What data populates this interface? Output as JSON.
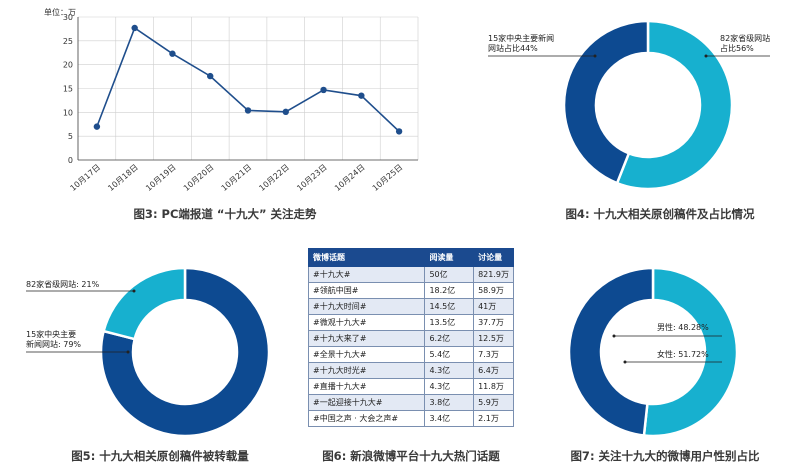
{
  "colors": {
    "dark_blue": "#0d4a91",
    "cyan": "#17b0cf",
    "line": "#1f4e8c"
  },
  "fig3": {
    "caption": "图3: PC端报道 “十九大” 关注走势",
    "chart_data": {
      "type": "line",
      "title": "图3: PC端报道 “十九大” 关注走势",
      "ylabel": "单位：万",
      "categories": [
        "10月17日",
        "10月18日",
        "10月19日",
        "10月20日",
        "10月21日",
        "10月22日",
        "10月23日",
        "10月24日",
        "10月25日"
      ],
      "values": [
        7,
        27.7,
        22.3,
        17.6,
        10.4,
        10.1,
        14.7,
        13.5,
        6
      ],
      "ylim": [
        0,
        30
      ],
      "yticks": [
        0,
        5,
        10,
        15,
        20,
        25,
        30
      ],
      "grid": true
    }
  },
  "fig4": {
    "caption": "图4: 十九大相关原创稿件及占比情况",
    "labels": [
      {
        "line1": "15家中央主要新闻",
        "line2": "网站占比44%"
      },
      {
        "line1": "82家省级网站",
        "line2": "占比56%"
      }
    ],
    "chart_data": {
      "type": "pie",
      "title": "图4: 十九大相关原创稿件及占比情况",
      "categories": [
        "15家中央主要新闻网站",
        "82家省级网站"
      ],
      "values": [
        44,
        56
      ]
    }
  },
  "fig5": {
    "caption": "图5: 十九大相关原创稿件被转载量",
    "labels": [
      {
        "line1": "82家省级网站: 21%",
        "line2": ""
      },
      {
        "line1": "15家中央主要",
        "line2": "新闻网站: 79%"
      }
    ],
    "chart_data": {
      "type": "pie",
      "title": "图5: 十九大相关原创稿件被转载量",
      "categories": [
        "82家省级网站",
        "15家中央主要新闻网站"
      ],
      "values": [
        21,
        79
      ]
    }
  },
  "fig6": {
    "caption": "图6: 新浪微博平台十九大热门话题",
    "chart_data": {
      "type": "table",
      "title": "图6: 新浪微博平台十九大热门话题",
      "columns": [
        "微博话题",
        "阅读量",
        "讨论量"
      ],
      "rows": [
        [
          "#十九大#",
          "50亿",
          "821.9万"
        ],
        [
          "#领航中国#",
          "18.2亿",
          "58.9万"
        ],
        [
          "#十九大时间#",
          "14.5亿",
          "41万"
        ],
        [
          "#微观十九大#",
          "13.5亿",
          "37.7万"
        ],
        [
          "#十九大来了#",
          "6.2亿",
          "12.5万"
        ],
        [
          "#全景十九大#",
          "5.4亿",
          "7.3万"
        ],
        [
          "#十九大时光#",
          "4.3亿",
          "6.4万"
        ],
        [
          "#直播十九大#",
          "4.3亿",
          "11.8万"
        ],
        [
          "#一起迎接十九大#",
          "3.8亿",
          "5.9万"
        ],
        [
          "#中国之声 · 大会之声#",
          "3.4亿",
          "2.1万"
        ]
      ]
    }
  },
  "fig7": {
    "caption": "图7: 关注十九大的微博用户性别占比",
    "labels": [
      {
        "line1": "男性: 48.28%",
        "line2": ""
      },
      {
        "line1": "女性: 51.72%",
        "line2": ""
      }
    ],
    "chart_data": {
      "type": "pie",
      "title": "图7: 关注十九大的微博用户性别占比",
      "categories": [
        "男性",
        "女性"
      ],
      "values": [
        48.28,
        51.72
      ]
    }
  }
}
